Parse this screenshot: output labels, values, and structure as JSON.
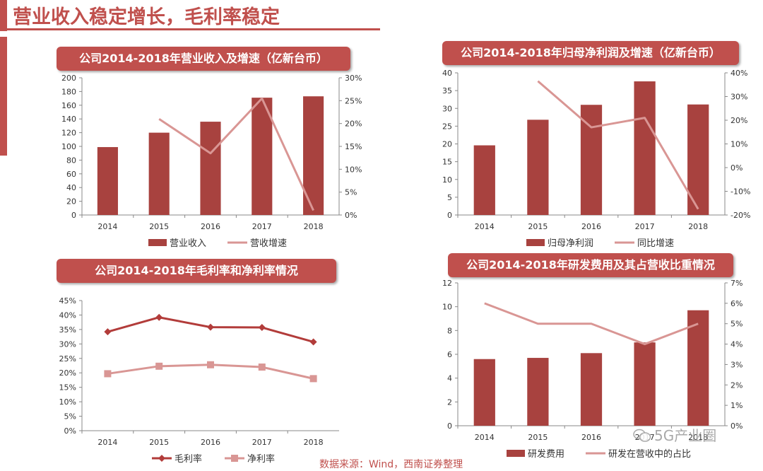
{
  "page": {
    "title": "营业收入稳定增长，毛利率稳定",
    "source": "数据来源：Wind，西南证券整理",
    "watermark": "5G产业圈",
    "colors": {
      "accent": "#c0504d",
      "bar": "#a8423f",
      "line_light": "#d99694",
      "line_dark": "#b23c3a"
    }
  },
  "chart_data": [
    {
      "type": "bar",
      "title": "公司2014-2018年营业收入及增速（亿新台币）",
      "categories": [
        "2014",
        "2015",
        "2016",
        "2017",
        "2018"
      ],
      "ylim": [
        0,
        200
      ],
      "yticks": [
        "0",
        "20",
        "40",
        "60",
        "80",
        "100",
        "120",
        "140",
        "160",
        "180",
        "200"
      ],
      "y2lim": [
        0,
        30
      ],
      "y2ticks": [
        "0%",
        "5%",
        "10%",
        "15%",
        "20%",
        "25%",
        "30%"
      ],
      "series": [
        {
          "name": "营业收入",
          "kind": "bar",
          "axis": "left",
          "values": [
            99,
            120,
            136,
            171,
            173
          ]
        },
        {
          "name": "营收增速",
          "kind": "line",
          "axis": "right",
          "values": [
            null,
            21.0,
            13.5,
            25.5,
            1.0
          ]
        }
      ],
      "legend": "bottom"
    },
    {
      "type": "bar",
      "title": "公司2014-2018年归母净利润及增速（亿新台币）",
      "categories": [
        "2014",
        "2015",
        "2016",
        "2017",
        "2018"
      ],
      "ylim": [
        0,
        40
      ],
      "yticks": [
        "0",
        "5",
        "10",
        "15",
        "20",
        "25",
        "30",
        "35",
        "40"
      ],
      "y2lim": [
        -20,
        40
      ],
      "y2ticks": [
        "-20%",
        "-10%",
        "0%",
        "10%",
        "20%",
        "30%",
        "40%"
      ],
      "series": [
        {
          "name": "归母净利润",
          "kind": "bar",
          "axis": "left",
          "values": [
            19.6,
            26.8,
            31.0,
            37.6,
            31.1
          ]
        },
        {
          "name": "同比增速",
          "kind": "line",
          "axis": "right",
          "values": [
            null,
            36.5,
            17.0,
            21.0,
            -17.5
          ]
        }
      ],
      "legend": "bottom"
    },
    {
      "type": "line",
      "title": "公司2014-2018年毛利率和净利率情况",
      "categories": [
        "2014",
        "2015",
        "2016",
        "2017",
        "2018"
      ],
      "ylim": [
        0,
        45
      ],
      "yticks": [
        "0%",
        "5%",
        "10%",
        "15%",
        "20%",
        "25%",
        "30%",
        "35%",
        "40%",
        "45%"
      ],
      "series": [
        {
          "name": "毛利率",
          "kind": "line",
          "marker": "diamond",
          "values": [
            34.2,
            39.2,
            35.8,
            35.7,
            30.7
          ]
        },
        {
          "name": "净利率",
          "kind": "line",
          "marker": "square",
          "values": [
            19.7,
            22.3,
            22.8,
            22.0,
            18.0
          ]
        }
      ],
      "legend": "bottom"
    },
    {
      "type": "bar",
      "title": "公司2014-2018年研发费用及其占营收比重情况",
      "categories": [
        "2014",
        "2015",
        "2016",
        "2017",
        "2018"
      ],
      "ylim": [
        0,
        12
      ],
      "yticks": [
        "0",
        "2",
        "4",
        "6",
        "8",
        "10",
        "12"
      ],
      "y2lim": [
        0,
        7
      ],
      "y2ticks": [
        "0%",
        "1%",
        "2%",
        "3%",
        "4%",
        "5%",
        "6%",
        "7%"
      ],
      "series": [
        {
          "name": "研发费用",
          "kind": "bar",
          "axis": "left",
          "values": [
            5.6,
            5.7,
            6.1,
            7.0,
            9.7
          ]
        },
        {
          "name": "研发在营收中的占比",
          "kind": "line",
          "axis": "right",
          "values": [
            6.0,
            5.0,
            5.0,
            4.0,
            5.0
          ]
        }
      ],
      "legend": "bottom"
    }
  ]
}
